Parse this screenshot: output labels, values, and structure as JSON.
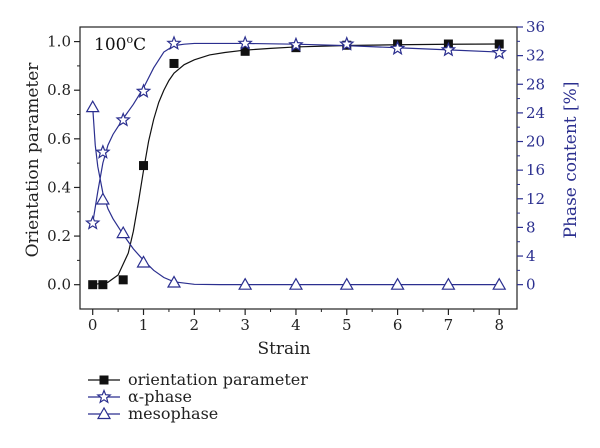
{
  "chart_data": {
    "type": "line",
    "annotation": {
      "main": "100",
      "sup": "o",
      "tail": "C"
    },
    "xlabel": "Strain",
    "ylabel_left": "Orientation parameter",
    "ylabel_right": "Phase content [%]",
    "xlim": [
      -0.25,
      8.35
    ],
    "ylim_left": [
      -0.1,
      1.06
    ],
    "ylim_right": [
      -3.4,
      36.0
    ],
    "xticks": [
      0,
      1,
      2,
      3,
      4,
      5,
      6,
      7,
      8
    ],
    "yticks_left": [
      0.0,
      0.2,
      0.4,
      0.6,
      0.8,
      1.0
    ],
    "yticks_left_labels": [
      "0.0",
      "0.2",
      "0.4",
      "0.6",
      "0.8",
      "1.0"
    ],
    "yticks_right": [
      0,
      4,
      8,
      12,
      16,
      20,
      24,
      28,
      32,
      36
    ],
    "colors": {
      "black": "#111111",
      "blue": "#2b2f8f"
    },
    "series": [
      {
        "name": "orientation parameter",
        "axis": "left",
        "marker": "square",
        "color": "#111111",
        "x": [
          0,
          0.2,
          0.6,
          1.0,
          1.6,
          3.0,
          4.0,
          5.0,
          6.0,
          7.0,
          8.0
        ],
        "y": [
          0.0,
          0.0,
          0.02,
          0.49,
          0.91,
          0.96,
          0.975,
          0.985,
          0.99,
          0.99,
          0.99
        ],
        "fit_x": [
          0,
          0.3,
          0.5,
          0.7,
          0.8,
          0.9,
          1.0,
          1.1,
          1.2,
          1.3,
          1.4,
          1.5,
          1.6,
          1.8,
          2.0,
          2.3,
          2.6,
          3.0,
          3.5,
          4.0,
          5.0,
          6.0,
          7.0,
          8.0
        ],
        "fit_y": [
          0.0,
          0.01,
          0.04,
          0.13,
          0.22,
          0.34,
          0.47,
          0.59,
          0.68,
          0.75,
          0.8,
          0.84,
          0.87,
          0.905,
          0.925,
          0.945,
          0.955,
          0.965,
          0.972,
          0.978,
          0.984,
          0.987,
          0.989,
          0.99
        ]
      },
      {
        "name": "α-phase",
        "axis": "right",
        "marker": "star",
        "color": "#2b2f8f",
        "x": [
          0,
          0.2,
          0.6,
          1.0,
          1.6,
          3.0,
          4.0,
          5.0,
          6.0,
          7.0,
          8.0
        ],
        "y": [
          8.6,
          18.5,
          23.0,
          27.0,
          33.7,
          33.7,
          33.5,
          33.6,
          33.0,
          32.8,
          32.4
        ],
        "fit_x": [
          0,
          0.1,
          0.2,
          0.3,
          0.4,
          0.6,
          0.8,
          1.0,
          1.2,
          1.4,
          1.6,
          1.8,
          2.0,
          2.3,
          2.6,
          3.0,
          4.0,
          5.0,
          6.0,
          7.0,
          8.0
        ],
        "fit_y": [
          8.6,
          13.0,
          17.0,
          19.5,
          21.0,
          23.2,
          25.2,
          27.5,
          30.3,
          32.5,
          33.4,
          33.6,
          33.7,
          33.7,
          33.7,
          33.7,
          33.6,
          33.4,
          33.1,
          32.8,
          32.5
        ]
      },
      {
        "name": "mesophase",
        "axis": "right",
        "marker": "triangle-down",
        "color": "#2b2f8f",
        "x": [
          0,
          0.2,
          0.6,
          1.0,
          1.6,
          3.0,
          4.0,
          5.0,
          6.0,
          7.0,
          8.0
        ],
        "y": [
          24.8,
          11.9,
          7.2,
          3.1,
          0.3,
          0.0,
          0.0,
          0.0,
          0.0,
          0.0,
          0.0
        ],
        "fit_x": [
          0,
          0.05,
          0.1,
          0.2,
          0.3,
          0.4,
          0.6,
          0.8,
          1.0,
          1.2,
          1.4,
          1.6,
          2.0,
          2.5,
          3.0,
          4.0,
          5.0,
          6.0,
          7.0,
          8.0
        ],
        "fit_y": [
          24.8,
          19.5,
          16.5,
          12.8,
          10.6,
          9.2,
          7.0,
          5.0,
          3.4,
          2.0,
          1.0,
          0.4,
          0.05,
          0.0,
          0.0,
          0.0,
          0.0,
          0.0,
          0.0,
          0.0
        ]
      }
    ],
    "legend": {
      "placement": "below-left",
      "entries": [
        "orientation parameter",
        "α-phase",
        "mesophase"
      ]
    }
  }
}
